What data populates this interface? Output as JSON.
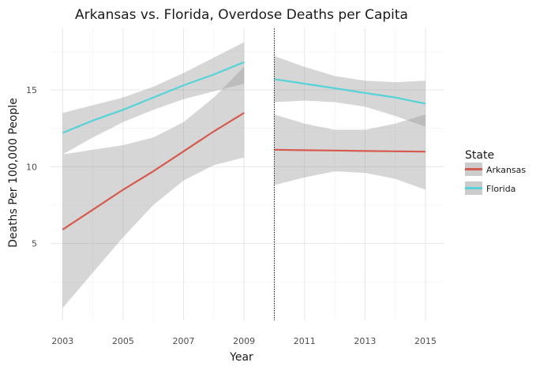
{
  "chart_data": {
    "type": "line",
    "title": "Arkansas vs. Florida, Overdose Deaths per Capita",
    "xlabel": "Year",
    "ylabel": "Deaths Per 100,000 People",
    "xlim": [
      2002.6,
      2015.6
    ],
    "ylim": [
      0,
      19
    ],
    "x_ticks": [
      2003,
      2005,
      2007,
      2009,
      2011,
      2013,
      2015
    ],
    "y_ticks": [
      5,
      10,
      15
    ],
    "grid": true,
    "vline": {
      "x": 2010,
      "style": "dotted"
    },
    "legend": {
      "title": "State",
      "position": "right",
      "entries": [
        {
          "label": "Arkansas",
          "color": "#d65a4e"
        },
        {
          "label": "Florida",
          "color": "#56d3d8"
        }
      ]
    },
    "series": [
      {
        "name": "Arkansas",
        "color": "#d65a4e",
        "segments": [
          {
            "x": [
              2003,
              2004,
              2005,
              2006,
              2007,
              2008,
              2009
            ],
            "y": [
              5.9,
              7.2,
              8.5,
              9.7,
              11.0,
              12.3,
              13.5
            ],
            "ci_low": [
              0.8,
              3.1,
              5.4,
              7.5,
              9.1,
              10.1,
              10.6
            ],
            "ci_high": [
              10.8,
              11.1,
              11.4,
              11.9,
              12.9,
              14.5,
              16.5
            ]
          },
          {
            "x": [
              2010,
              2011,
              2012,
              2013,
              2014,
              2015
            ],
            "y": [
              11.1,
              11.07,
              11.05,
              11.02,
              11.0,
              10.98
            ],
            "ci_low": [
              8.8,
              9.3,
              9.7,
              9.6,
              9.2,
              8.5
            ],
            "ci_high": [
              13.4,
              12.8,
              12.4,
              12.4,
              12.8,
              13.4
            ]
          }
        ]
      },
      {
        "name": "Florida",
        "color": "#56d3d8",
        "segments": [
          {
            "x": [
              2003,
              2004,
              2005,
              2006,
              2007,
              2008,
              2009
            ],
            "y": [
              12.2,
              13.0,
              13.7,
              14.5,
              15.3,
              16.0,
              16.8
            ],
            "ci_low": [
              10.8,
              11.9,
              12.9,
              13.7,
              14.4,
              14.9,
              15.4
            ],
            "ci_high": [
              13.5,
              14.0,
              14.5,
              15.2,
              16.1,
              17.1,
              18.1
            ]
          },
          {
            "x": [
              2010,
              2011,
              2012,
              2013,
              2014,
              2015
            ],
            "y": [
              15.7,
              15.4,
              15.1,
              14.8,
              14.5,
              14.1
            ],
            "ci_low": [
              14.2,
              14.3,
              14.2,
              13.9,
              13.3,
              12.6
            ],
            "ci_high": [
              17.2,
              16.5,
              15.9,
              15.6,
              15.5,
              15.6
            ]
          }
        ]
      }
    ]
  }
}
